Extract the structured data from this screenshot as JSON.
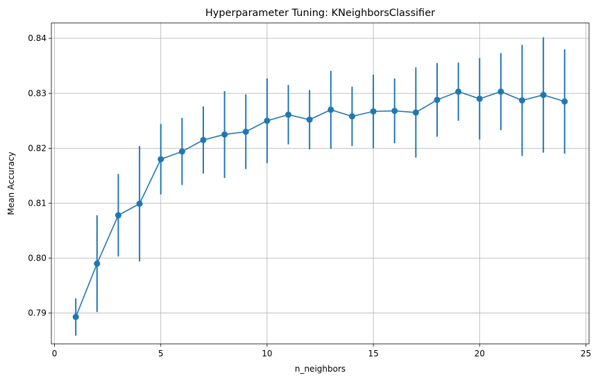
{
  "chart_data": {
    "type": "line",
    "title": "Hyperparameter Tuning: KNeighborsClassifier",
    "xlabel": "n_neighbors",
    "ylabel": "Mean Accuracy",
    "xlim": [
      -0.15,
      25.15
    ],
    "ylim": [
      0.7844,
      0.8428
    ],
    "xticks": [
      0,
      5,
      10,
      15,
      20,
      25
    ],
    "xtick_labels": [
      "0",
      "5",
      "10",
      "15",
      "20",
      "25"
    ],
    "yticks": [
      0.79,
      0.8,
      0.81,
      0.82,
      0.83,
      0.84
    ],
    "ytick_labels": [
      "0.79",
      "0.80",
      "0.81",
      "0.82",
      "0.83",
      "0.84"
    ],
    "grid": true,
    "color": "#1f77b4",
    "series": [
      {
        "x": [
          1,
          2,
          3,
          4,
          5,
          6,
          7,
          8,
          9,
          10,
          11,
          12,
          13,
          14,
          15,
          16,
          17,
          18,
          19,
          20,
          21,
          22,
          23,
          24
        ],
        "y": [
          0.7893,
          0.799,
          0.8078,
          0.8099,
          0.818,
          0.8194,
          0.8215,
          0.8225,
          0.823,
          0.825,
          0.8261,
          0.8252,
          0.827,
          0.8258,
          0.8267,
          0.8268,
          0.8265,
          0.8288,
          0.8303,
          0.829,
          0.8303,
          0.8287,
          0.8297,
          0.8285
        ],
        "yerr": [
          0.0034,
          0.0088,
          0.0075,
          0.0105,
          0.0064,
          0.0061,
          0.0061,
          0.0079,
          0.0068,
          0.0077,
          0.0054,
          0.0054,
          0.0071,
          0.0054,
          0.0067,
          0.0059,
          0.0082,
          0.0067,
          0.0053,
          0.0074,
          0.007,
          0.0101,
          0.0105,
          0.0095
        ]
      }
    ]
  }
}
